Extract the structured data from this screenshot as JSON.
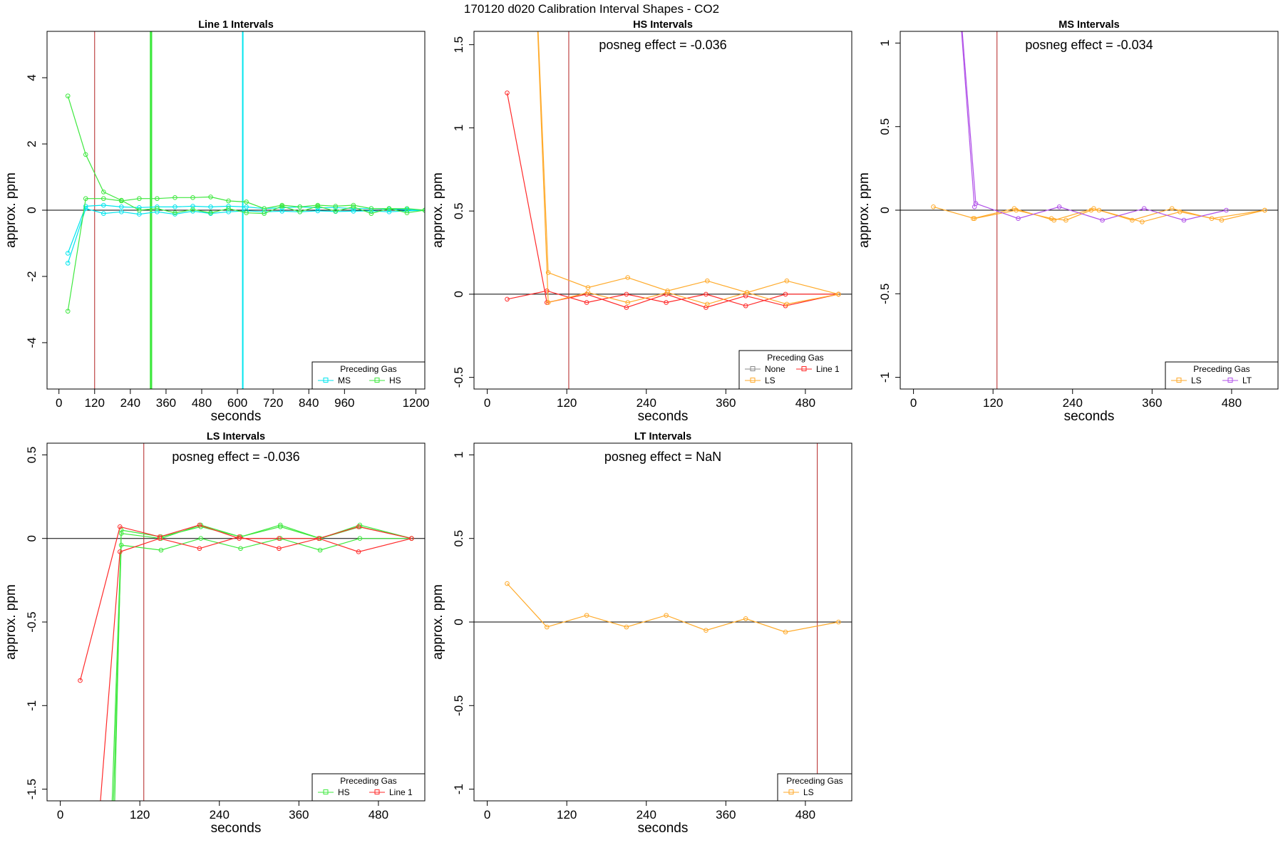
{
  "figure": {
    "title": "170120  d020   Calibration Interval Shapes - CO2",
    "legend_title": "Preceding Gas"
  },
  "colors": {
    "MS": "#00e5ee",
    "HS": "#3ee83e",
    "Line 1": "#ff2a2a",
    "LS": "#ffaa2a",
    "LT": "#b050e8",
    "None": "#888888",
    "marker_line": "#b22222",
    "zero_line": "#000000"
  },
  "chart_data": [
    {
      "type": "line",
      "title": "Line 1 Intervals",
      "xlabel": "seconds",
      "ylabel": "approx. ppm",
      "xlim": [
        -40,
        1230
      ],
      "ylim": [
        -5.4,
        5.4
      ],
      "xticks": [
        0,
        120,
        240,
        360,
        480,
        600,
        720,
        840,
        960,
        1200
      ],
      "yticks": [
        -4,
        -2,
        0,
        2,
        4
      ],
      "annotation": "",
      "marker_lines": [
        {
          "x": 120,
          "color": "marker_line"
        }
      ],
      "vlines": [
        {
          "x": 308,
          "color": "HS"
        },
        {
          "x": 311,
          "color": "HS"
        },
        {
          "x": 618,
          "color": "MS"
        }
      ],
      "legend": {
        "position": "bottom-right",
        "entries": [
          "MS",
          "HS"
        ],
        "columns": 2
      },
      "series": [
        {
          "name": "MS",
          "color": "MS",
          "x": [
            30,
            90,
            150,
            210,
            270,
            330,
            390,
            450,
            510,
            570,
            630,
            690,
            750,
            810,
            870,
            930,
            990,
            1050,
            1110,
            1170,
            1230
          ],
          "y": [
            -1.3,
            0.12,
            0.15,
            0.1,
            0.08,
            0.1,
            0.1,
            0.12,
            0.1,
            0.12,
            0.1,
            0.05,
            0.07,
            0.1,
            0.07,
            0.08,
            0.05,
            0.05,
            0.03,
            0.02,
            0.0
          ]
        },
        {
          "name": "MS",
          "color": "MS",
          "x": [
            30,
            90,
            150,
            210,
            270,
            330,
            390,
            450,
            510,
            570,
            630,
            690,
            750,
            810,
            870,
            930,
            990,
            1050,
            1110,
            1170,
            1230
          ],
          "y": [
            -1.6,
            0.05,
            -0.1,
            -0.05,
            -0.12,
            -0.05,
            -0.12,
            -0.03,
            -0.1,
            -0.05,
            -0.02,
            -0.05,
            -0.03,
            -0.05,
            -0.02,
            -0.04,
            -0.03,
            -0.02,
            -0.05,
            -0.02,
            0.0
          ]
        },
        {
          "name": "HS",
          "color": "HS",
          "x": [
            30,
            90,
            150,
            210,
            270,
            330,
            390,
            450,
            510,
            570,
            630,
            690,
            750,
            810,
            870,
            930,
            990,
            1050,
            1110,
            1170,
            1230
          ],
          "y": [
            3.45,
            1.68,
            0.55,
            0.3,
            0.0,
            0.05,
            -0.08,
            0.02,
            -0.08,
            0.05,
            -0.08,
            -0.1,
            0.12,
            -0.05,
            0.12,
            -0.03,
            0.1,
            -0.1,
            0.05,
            0.05,
            0.0
          ]
        },
        {
          "name": "HS",
          "color": "HS",
          "x": [
            30,
            90,
            150,
            210,
            270,
            330,
            390,
            450,
            510,
            570,
            630,
            690,
            750,
            810,
            870,
            930,
            990,
            1050,
            1110,
            1170,
            1230
          ],
          "y": [
            -3.05,
            0.35,
            0.35,
            0.28,
            0.35,
            0.35,
            0.38,
            0.38,
            0.4,
            0.28,
            0.25,
            0.05,
            0.15,
            0.1,
            0.15,
            0.12,
            0.15,
            0.05,
            0.05,
            -0.08,
            0.0
          ]
        }
      ]
    },
    {
      "type": "line",
      "title": "HS Intervals",
      "xlabel": "seconds",
      "ylabel": "approx. ppm",
      "xlim": [
        -20,
        550
      ],
      "ylim": [
        -0.57,
        1.58
      ],
      "xticks": [
        0,
        120,
        240,
        360,
        480
      ],
      "yticks": [
        -0.5,
        0.0,
        0.5,
        1.0,
        1.5
      ],
      "annotation": "posneg effect = -0.036",
      "marker_lines": [
        {
          "x": 123,
          "color": "marker_line"
        }
      ],
      "vlines": [],
      "legend": {
        "position": "bottom-right",
        "entries": [
          "None",
          "Line 1",
          "LS"
        ],
        "columns": 2
      },
      "series": [
        {
          "name": "Line 1",
          "color": "Line 1",
          "x": [
            30,
            90,
            150,
            210,
            270,
            330,
            390,
            450,
            530
          ],
          "y": [
            1.21,
            -0.05,
            0.0,
            -0.08,
            0.0,
            -0.08,
            -0.01,
            -0.07,
            0.0
          ]
        },
        {
          "name": "Line 1",
          "color": "Line 1",
          "x": [
            30,
            90,
            150,
            210,
            270,
            330,
            390,
            450,
            530
          ],
          "y": [
            -0.03,
            0.02,
            -0.05,
            0.0,
            -0.05,
            0.0,
            -0.07,
            0.0,
            0.0
          ]
        },
        {
          "name": "LS",
          "color": "LS",
          "x": [
            75,
            92,
            152,
            212,
            272,
            332,
            392,
            452,
            530
          ],
          "y": [
            1.75,
            0.13,
            0.04,
            0.1,
            0.02,
            0.08,
            0.01,
            0.08,
            0.0
          ]
        },
        {
          "name": "LS",
          "color": "LS",
          "x": [
            75,
            92,
            152,
            212,
            272,
            332,
            392,
            452,
            530
          ],
          "y": [
            1.7,
            -0.05,
            0.01,
            -0.05,
            0.01,
            -0.06,
            0.01,
            -0.06,
            0.0
          ]
        }
      ]
    },
    {
      "type": "line",
      "title": "MS Intervals",
      "xlabel": "seconds",
      "ylabel": "approx. ppm",
      "xlim": [
        -20,
        550
      ],
      "ylim": [
        -1.07,
        1.07
      ],
      "xticks": [
        0,
        120,
        240,
        360,
        480
      ],
      "yticks": [
        -1.0,
        -0.5,
        0.0,
        0.5,
        1.0
      ],
      "annotation": "posneg effect = -0.034",
      "marker_lines": [
        {
          "x": 126,
          "color": "marker_line"
        }
      ],
      "vlines": [],
      "legend": {
        "position": "bottom-right",
        "entries": [
          "LS",
          "LT"
        ],
        "columns": 2
      },
      "series": [
        {
          "name": "LS",
          "color": "LS",
          "x": [
            30,
            92,
            155,
            208,
            230,
            268,
            280,
            345,
            402,
            465,
            530
          ],
          "y": [
            0.02,
            -0.05,
            0.0,
            -0.05,
            -0.06,
            0.0,
            0.0,
            -0.07,
            -0.01,
            -0.06,
            0.0
          ]
        },
        {
          "name": "LS",
          "color": "LS",
          "x": [
            90,
            152,
            212,
            272,
            330,
            390,
            450,
            530
          ],
          "y": [
            -0.05,
            0.01,
            -0.06,
            0.01,
            -0.06,
            0.01,
            -0.05,
            0.0
          ]
        },
        {
          "name": "LT",
          "color": "LT",
          "x": [
            72,
            94,
            158,
            220,
            285,
            348,
            408,
            472
          ],
          "y": [
            1.15,
            0.04,
            -0.05,
            0.02,
            -0.06,
            0.01,
            -0.06,
            0.0
          ]
        },
        {
          "name": "LT",
          "color": "LT",
          "x": [
            72,
            92
          ],
          "y": [
            1.1,
            0.02
          ]
        }
      ]
    },
    {
      "type": "line",
      "title": "LS Intervals",
      "xlabel": "seconds",
      "ylabel": "approx. ppm",
      "xlim": [
        -20,
        550
      ],
      "ylim": [
        -1.57,
        0.57
      ],
      "xticks": [
        0,
        120,
        240,
        360,
        480
      ],
      "yticks": [
        -1.5,
        -1.0,
        -0.5,
        0.0,
        0.5
      ],
      "annotation": "posneg effect = -0.036",
      "marker_lines": [
        {
          "x": 126,
          "color": "marker_line"
        }
      ],
      "vlines": [],
      "legend": {
        "position": "bottom-right",
        "entries": [
          "HS",
          "Line 1"
        ],
        "columns": 2
      },
      "series": [
        {
          "name": "HS",
          "color": "HS",
          "x": [
            78,
            92,
            152,
            212,
            272,
            332,
            392,
            452,
            530
          ],
          "y": [
            -1.6,
            0.03,
            0.0,
            0.08,
            0.01,
            0.08,
            0.0,
            0.08,
            0.0
          ]
        },
        {
          "name": "HS",
          "color": "HS",
          "x": [
            80,
            92,
            152,
            212,
            272,
            332,
            392,
            452,
            530
          ],
          "y": [
            -1.6,
            -0.04,
            -0.07,
            0.0,
            -0.06,
            0.0,
            -0.07,
            0.0,
            0.0
          ]
        },
        {
          "name": "HS",
          "color": "HS",
          "x": [
            82,
            92,
            152,
            212,
            272,
            332,
            392,
            452,
            530
          ],
          "y": [
            -1.6,
            0.05,
            0.01,
            0.07,
            0.01,
            0.07,
            0.0,
            0.07,
            0.0
          ]
        },
        {
          "name": "Line 1",
          "color": "Line 1",
          "x": [
            30,
            90,
            150,
            210,
            270,
            330,
            390,
            450,
            530
          ],
          "y": [
            -0.85,
            0.07,
            0.01,
            0.08,
            0.0,
            0.0,
            0.0,
            0.07,
            0.0
          ]
        },
        {
          "name": "Line 1",
          "color": "Line 1",
          "x": [
            60,
            90,
            150,
            210,
            270,
            330,
            390,
            450,
            530
          ],
          "y": [
            -1.6,
            -0.08,
            0.0,
            -0.06,
            0.01,
            -0.06,
            0.0,
            -0.08,
            0.0
          ]
        }
      ]
    },
    {
      "type": "line",
      "title": "LT Intervals",
      "xlabel": "seconds",
      "ylabel": "approx. ppm",
      "xlim": [
        -20,
        550
      ],
      "ylim": [
        -1.07,
        1.07
      ],
      "xticks": [
        0,
        120,
        240,
        360,
        480
      ],
      "yticks": [
        -1.0,
        -0.5,
        0.0,
        0.5,
        1.0
      ],
      "annotation": "posneg effect = NaN",
      "marker_lines": [
        {
          "x": 498,
          "color": "marker_line"
        }
      ],
      "vlines": [],
      "legend": {
        "position": "bottom-right",
        "entries": [
          "LS"
        ],
        "columns": 1
      },
      "series": [
        {
          "name": "LS",
          "color": "LS",
          "x": [
            30,
            90,
            150,
            210,
            270,
            330,
            390,
            450,
            530
          ],
          "y": [
            0.23,
            -0.03,
            0.04,
            -0.03,
            0.04,
            -0.05,
            0.02,
            -0.06,
            0.0
          ]
        }
      ]
    }
  ]
}
